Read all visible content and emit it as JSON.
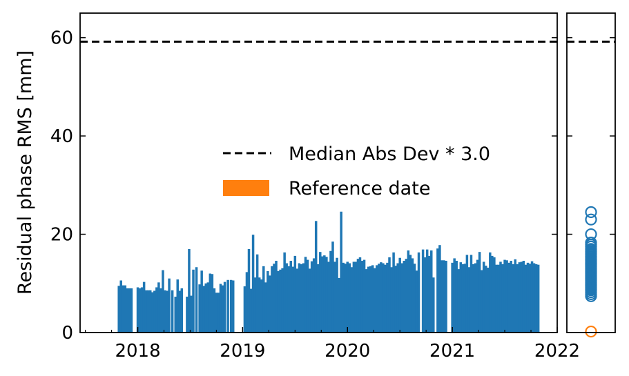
{
  "chart_data": [
    {
      "type": "bar",
      "ylabel": "Residual phase RMS [mm]",
      "xlim": [
        2017.45,
        2022.0
      ],
      "ylim": [
        0,
        65
      ],
      "x_ticks": [
        2018,
        2019,
        2020,
        2021,
        2022
      ],
      "x_tick_labels": [
        "2018",
        "2019",
        "2020",
        "2021",
        "2022"
      ],
      "y_ticks": [
        0,
        20,
        40,
        60
      ],
      "y_tick_labels": [
        "0",
        "20",
        "40",
        "60"
      ],
      "threshold": 59.2,
      "legend": {
        "location": "center-right",
        "entries": [
          "Median Abs Dev * 3.0",
          "Reference date"
        ]
      },
      "colors": {
        "bar": "#1f77b4",
        "reference": "#ff7f0e",
        "threshold": "#000000"
      },
      "dates": [
        2017.82,
        2017.84,
        2017.86,
        2017.88,
        2017.9,
        2017.92,
        2017.94,
        2018.0,
        2018.02,
        2018.04,
        2018.06,
        2018.08,
        2018.1,
        2018.12,
        2018.14,
        2018.16,
        2018.18,
        2018.2,
        2018.22,
        2018.24,
        2018.26,
        2018.28,
        2018.3,
        2018.33,
        2018.36,
        2018.38,
        2018.4,
        2018.42,
        2018.47,
        2018.49,
        2018.51,
        2018.53,
        2018.56,
        2018.59,
        2018.61,
        2018.63,
        2018.65,
        2018.67,
        2018.69,
        2018.71,
        2018.73,
        2018.75,
        2018.77,
        2018.79,
        2018.81,
        2018.83,
        2018.86,
        2018.89,
        2018.91,
        2019.02,
        2019.04,
        2019.06,
        2019.08,
        2019.1,
        2019.12,
        2019.14,
        2019.16,
        2019.18,
        2019.2,
        2019.22,
        2019.24,
        2019.26,
        2019.28,
        2019.3,
        2019.32,
        2019.34,
        2019.36,
        2019.38,
        2019.4,
        2019.42,
        2019.44,
        2019.46,
        2019.48,
        2019.5,
        2019.52,
        2019.54,
        2019.56,
        2019.58,
        2019.6,
        2019.62,
        2019.64,
        2019.66,
        2019.68,
        2019.7,
        2019.72,
        2019.74,
        2019.76,
        2019.78,
        2019.8,
        2019.82,
        2019.84,
        2019.86,
        2019.88,
        2019.9,
        2019.92,
        2019.94,
        2019.96,
        2019.98,
        2020.0,
        2020.02,
        2020.04,
        2020.06,
        2020.08,
        2020.1,
        2020.12,
        2020.14,
        2020.16,
        2020.18,
        2020.2,
        2020.22,
        2020.24,
        2020.26,
        2020.28,
        2020.3,
        2020.32,
        2020.34,
        2020.36,
        2020.38,
        2020.4,
        2020.42,
        2020.44,
        2020.46,
        2020.48,
        2020.5,
        2020.52,
        2020.54,
        2020.56,
        2020.58,
        2020.6,
        2020.62,
        2020.64,
        2020.66,
        2020.68,
        2020.72,
        2020.74,
        2020.76,
        2020.78,
        2020.8,
        2020.82,
        2020.86,
        2020.88,
        2020.9,
        2020.92,
        2020.94,
        2021.0,
        2021.02,
        2021.04,
        2021.06,
        2021.08,
        2021.1,
        2021.12,
        2021.14,
        2021.16,
        2021.18,
        2021.2,
        2021.22,
        2021.24,
        2021.26,
        2021.28,
        2021.3,
        2021.32,
        2021.34,
        2021.36,
        2021.38,
        2021.4,
        2021.42,
        2021.44,
        2021.46,
        2021.48,
        2021.5,
        2021.52,
        2021.54,
        2021.56,
        2021.58,
        2021.6,
        2021.62,
        2021.64,
        2021.66,
        2021.68,
        2021.7,
        2021.72,
        2021.74,
        2021.76,
        2021.78,
        2021.8,
        2021.82
      ],
      "values": [
        9.5,
        10.6,
        9.6,
        9.6,
        9.0,
        9.0,
        9.0,
        9.2,
        9.0,
        9.2,
        10.3,
        8.6,
        8.6,
        8.6,
        8.2,
        8.5,
        9.2,
        10.2,
        9.0,
        12.7,
        8.6,
        8.5,
        11.0,
        8.6,
        7.3,
        10.8,
        8.5,
        9.0,
        7.3,
        17.0,
        7.5,
        12.8,
        13.3,
        9.8,
        12.6,
        9.5,
        10.0,
        10.2,
        12.0,
        11.9,
        9.0,
        8.1,
        8.1,
        9.9,
        9.6,
        10.3,
        10.7,
        10.7,
        10.6,
        9.4,
        12.3,
        17.0,
        8.9,
        19.9,
        11.2,
        15.9,
        11.2,
        10.8,
        13.5,
        10.2,
        12.5,
        11.6,
        13.5,
        14.0,
        14.6,
        12.5,
        12.8,
        13.1,
        16.3,
        14.1,
        13.5,
        14.6,
        13.4,
        15.6,
        13.0,
        14.1,
        13.9,
        14.1,
        15.4,
        14.8,
        13.0,
        14.5,
        15.1,
        22.7,
        13.9,
        16.4,
        15.5,
        15.7,
        15.4,
        14.4,
        16.6,
        18.5,
        14.4,
        15.2,
        11.1,
        24.6,
        14.2,
        14.0,
        14.4,
        14.1,
        13.3,
        14.4,
        14.4,
        15.0,
        15.3,
        14.6,
        14.8,
        12.9,
        13.4,
        13.5,
        13.7,
        13.1,
        13.7,
        14.0,
        14.3,
        14.1,
        13.8,
        14.2,
        15.3,
        13.3,
        16.3,
        13.6,
        14.1,
        15.2,
        14.1,
        14.6,
        15.0,
        16.7,
        15.8,
        15.1,
        14.0,
        12.6,
        16.3,
        16.9,
        15.3,
        16.9,
        15.6,
        16.7,
        11.2,
        17.1,
        17.8,
        14.7,
        14.7,
        14.6,
        14.2,
        15.1,
        14.6,
        12.9,
        14.3,
        13.9,
        14.0,
        15.8,
        13.3,
        15.8,
        13.9,
        14.1,
        14.8,
        16.4,
        12.7,
        14.4,
        13.6,
        13.2,
        16.3,
        15.6,
        15.3,
        13.8,
        13.8,
        14.4,
        13.9,
        14.8,
        14.7,
        14.2,
        14.6,
        13.9,
        14.9,
        13.9,
        14.3,
        14.4,
        14.6,
        13.8,
        14.2,
        14.0,
        14.5,
        14.1,
        13.9,
        13.8
      ]
    },
    {
      "type": "scatter",
      "ylim": [
        0,
        65
      ],
      "y_ticks": [
        0,
        20,
        40,
        60
      ],
      "threshold": 59.2,
      "values": [
        24.5,
        23.0,
        20.0,
        18.3,
        17.9,
        17.5,
        17.0,
        16.8,
        16.5,
        16.3,
        16.0,
        15.8,
        15.5,
        15.3,
        15.0,
        14.8,
        14.6,
        14.4,
        14.2,
        14.0,
        13.8,
        13.6,
        13.4,
        13.2,
        13.0,
        12.8,
        12.6,
        12.4,
        12.2,
        12.0,
        11.8,
        11.6,
        11.4,
        11.2,
        11.0,
        10.8,
        10.6,
        10.4,
        10.2,
        10.0,
        9.8,
        9.6,
        9.4,
        9.2,
        9.0,
        8.8,
        8.6,
        8.2,
        7.8,
        7.4
      ],
      "reference_value": 0.2
    }
  ]
}
